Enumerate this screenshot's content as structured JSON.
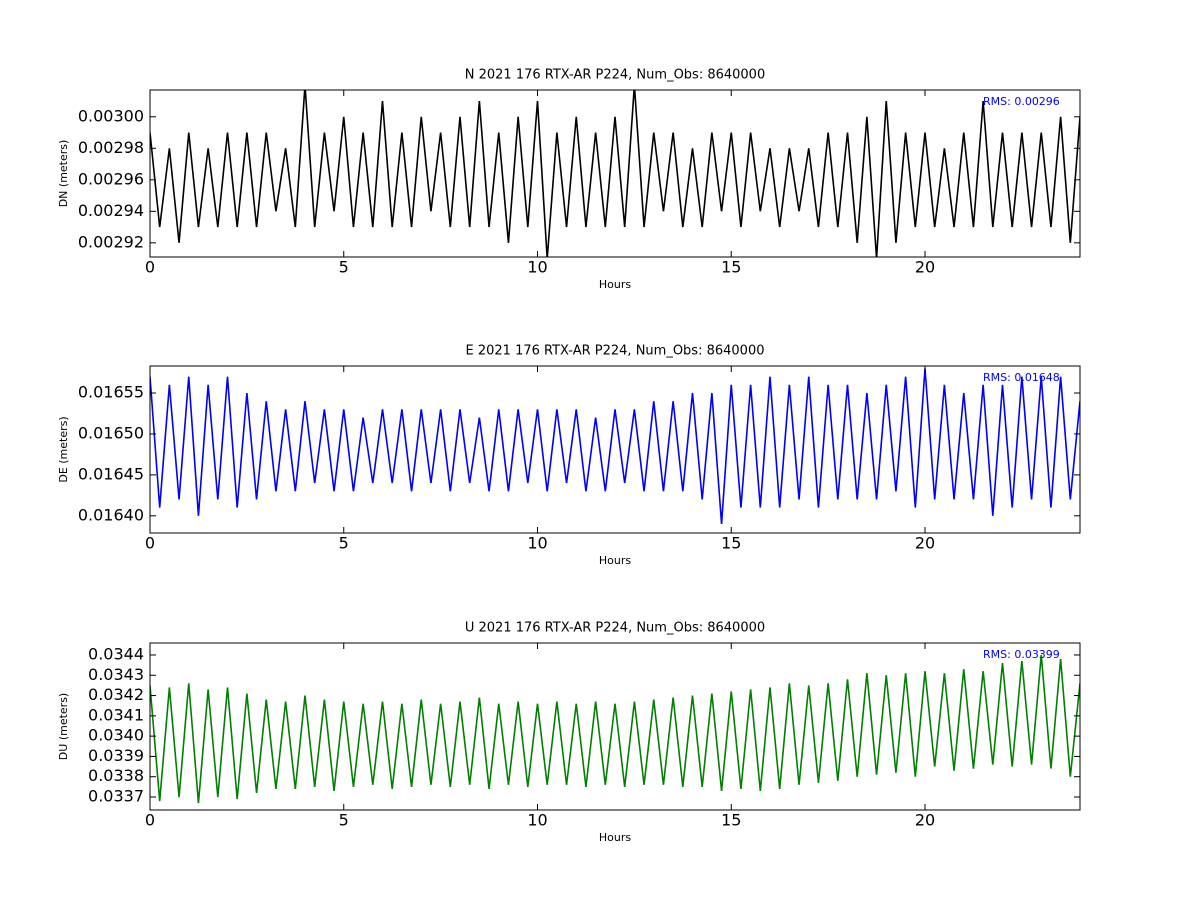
{
  "chart_data": [
    {
      "type": "line",
      "title": "N 2021 176 RTX-AR  P224, Num_Obs: 8640000",
      "xlabel": "Hours",
      "ylabel": "DN (meters)",
      "annotation": "RMS:  0.00296",
      "annotation_color": "#0000ff",
      "color": "#000000",
      "xlim": [
        0,
        24
      ],
      "xticks": [
        0,
        5,
        10,
        15,
        20
      ],
      "ylim": [
        0.002911,
        0.003017
      ],
      "yticks": [
        0.00292,
        0.00294,
        0.00296,
        0.00298,
        {
          "value": 0.003,
          "label": "0.00300"
        }
      ],
      "x": [
        0,
        0.25,
        0.5,
        0.75,
        1,
        1.25,
        1.5,
        1.75,
        2,
        2.25,
        2.5,
        2.75,
        3,
        3.25,
        3.5,
        3.75,
        4,
        4.25,
        4.5,
        4.75,
        5,
        5.25,
        5.5,
        5.75,
        6,
        6.25,
        6.5,
        6.75,
        7,
        7.25,
        7.5,
        7.75,
        8,
        8.25,
        8.5,
        8.75,
        9,
        9.25,
        9.5,
        9.75,
        10,
        10.25,
        10.5,
        10.75,
        11,
        11.25,
        11.5,
        11.75,
        12,
        12.25,
        12.5,
        12.75,
        13,
        13.25,
        13.5,
        13.75,
        14,
        14.25,
        14.5,
        14.75,
        15,
        15.25,
        15.5,
        15.75,
        16,
        16.25,
        16.5,
        16.75,
        17,
        17.25,
        17.5,
        17.75,
        18,
        18.25,
        18.5,
        18.75,
        19,
        19.25,
        19.5,
        19.75,
        20,
        20.25,
        20.5,
        20.75,
        21,
        21.25,
        21.5,
        21.75,
        22,
        22.25,
        22.5,
        22.75,
        23,
        23.25,
        23.5,
        23.75,
        24
      ],
      "values": [
        0.00299,
        0.00293,
        0.00298,
        0.00292,
        0.00299,
        0.00293,
        0.00298,
        0.00293,
        0.00299,
        0.00293,
        0.00299,
        0.00293,
        0.00299,
        0.00294,
        0.00298,
        0.00293,
        0.00302,
        0.00293,
        0.00299,
        0.00294,
        0.003,
        0.00293,
        0.00299,
        0.00293,
        0.00301,
        0.00293,
        0.00299,
        0.00293,
        0.003,
        0.00294,
        0.00299,
        0.00293,
        0.003,
        0.00293,
        0.00301,
        0.00293,
        0.00299,
        0.00292,
        0.003,
        0.00293,
        0.00301,
        0.00291,
        0.00299,
        0.00293,
        0.003,
        0.00293,
        0.00299,
        0.00293,
        0.003,
        0.00293,
        0.00302,
        0.00293,
        0.00299,
        0.00294,
        0.00299,
        0.00293,
        0.00298,
        0.00293,
        0.00299,
        0.00294,
        0.00299,
        0.00293,
        0.00299,
        0.00294,
        0.00298,
        0.00293,
        0.00298,
        0.00294,
        0.00298,
        0.00293,
        0.00299,
        0.00293,
        0.00299,
        0.00292,
        0.003,
        0.00291,
        0.00301,
        0.00292,
        0.00299,
        0.00293,
        0.00299,
        0.00293,
        0.00298,
        0.00293,
        0.00299,
        0.00293,
        0.00301,
        0.00293,
        0.00299,
        0.00293,
        0.00299,
        0.00293,
        0.00299,
        0.00293,
        0.003,
        0.00292,
        0.003
      ]
    },
    {
      "type": "line",
      "title": "E 2021 176 RTX-AR  P224, Num_Obs: 8640000",
      "xlabel": "Hours",
      "ylabel": "DE (meters)",
      "annotation": "RMS:  0.01648",
      "annotation_color": "#0000ff",
      "color": "#0000ff",
      "xlim": [
        0,
        24
      ],
      "xticks": [
        0,
        5,
        10,
        15,
        20
      ],
      "ylim": [
        0.016379,
        0.016583
      ],
      "yticks": [
        {
          "value": 0.0164,
          "label": "0.01640"
        },
        0.01645,
        {
          "value": 0.0165,
          "label": "0.01650"
        },
        0.01655
      ],
      "x": [
        0,
        0.25,
        0.5,
        0.75,
        1,
        1.25,
        1.5,
        1.75,
        2,
        2.25,
        2.5,
        2.75,
        3,
        3.25,
        3.5,
        3.75,
        4,
        4.25,
        4.5,
        4.75,
        5,
        5.25,
        5.5,
        5.75,
        6,
        6.25,
        6.5,
        6.75,
        7,
        7.25,
        7.5,
        7.75,
        8,
        8.25,
        8.5,
        8.75,
        9,
        9.25,
        9.5,
        9.75,
        10,
        10.25,
        10.5,
        10.75,
        11,
        11.25,
        11.5,
        11.75,
        12,
        12.25,
        12.5,
        12.75,
        13,
        13.25,
        13.5,
        13.75,
        14,
        14.25,
        14.5,
        14.75,
        15,
        15.25,
        15.5,
        15.75,
        16,
        16.25,
        16.5,
        16.75,
        17,
        17.25,
        17.5,
        17.75,
        18,
        18.25,
        18.5,
        18.75,
        19,
        19.25,
        19.5,
        19.75,
        20,
        20.25,
        20.5,
        20.75,
        21,
        21.25,
        21.5,
        21.75,
        22,
        22.25,
        22.5,
        22.75,
        23,
        23.25,
        23.5,
        23.75,
        24
      ],
      "values": [
        0.01657,
        0.01641,
        0.01656,
        0.01642,
        0.01657,
        0.0164,
        0.01656,
        0.01642,
        0.01657,
        0.01641,
        0.01655,
        0.01642,
        0.01654,
        0.01643,
        0.01653,
        0.01643,
        0.01654,
        0.01644,
        0.01653,
        0.01643,
        0.01653,
        0.01643,
        0.01652,
        0.01644,
        0.01653,
        0.01644,
        0.01653,
        0.01643,
        0.01653,
        0.01644,
        0.01653,
        0.01643,
        0.01653,
        0.01644,
        0.01652,
        0.01643,
        0.01653,
        0.01643,
        0.01653,
        0.01644,
        0.01653,
        0.01643,
        0.01653,
        0.01644,
        0.01653,
        0.01643,
        0.01652,
        0.01643,
        0.01653,
        0.01644,
        0.01653,
        0.01643,
        0.01654,
        0.01643,
        0.01654,
        0.01643,
        0.01655,
        0.01642,
        0.01655,
        0.01639,
        0.01656,
        0.01641,
        0.01656,
        0.01641,
        0.01657,
        0.01641,
        0.01656,
        0.01642,
        0.01657,
        0.01641,
        0.01656,
        0.01642,
        0.01656,
        0.01642,
        0.01655,
        0.01642,
        0.01656,
        0.01643,
        0.01657,
        0.01641,
        0.01658,
        0.01642,
        0.01656,
        0.01642,
        0.01655,
        0.01642,
        0.01656,
        0.0164,
        0.01656,
        0.01641,
        0.01657,
        0.01642,
        0.01657,
        0.01641,
        0.01657,
        0.01642,
        0.01654
      ]
    },
    {
      "type": "line",
      "title": "U 2021 176 RTX-AR  P224, Num_Obs: 8640000",
      "xlabel": "Hours",
      "ylabel": "DU (meters)",
      "annotation": "RMS:  0.03399",
      "annotation_color": "#0000ff",
      "color": "#008000",
      "xlim": [
        0,
        24
      ],
      "xticks": [
        0,
        5,
        10,
        15,
        20
      ],
      "ylim": [
        0.033636,
        0.034459
      ],
      "yticks": [
        0.0337,
        0.0338,
        0.0339,
        {
          "value": 0.034,
          "label": "0.0340"
        },
        0.0341,
        0.0342,
        0.0343,
        0.0344
      ],
      "x": [
        0,
        0.25,
        0.5,
        0.75,
        1,
        1.25,
        1.5,
        1.75,
        2,
        2.25,
        2.5,
        2.75,
        3,
        3.25,
        3.5,
        3.75,
        4,
        4.25,
        4.5,
        4.75,
        5,
        5.25,
        5.5,
        5.75,
        6,
        6.25,
        6.5,
        6.75,
        7,
        7.25,
        7.5,
        7.75,
        8,
        8.25,
        8.5,
        8.75,
        9,
        9.25,
        9.5,
        9.75,
        10,
        10.25,
        10.5,
        10.75,
        11,
        11.25,
        11.5,
        11.75,
        12,
        12.25,
        12.5,
        12.75,
        13,
        13.25,
        13.5,
        13.75,
        14,
        14.25,
        14.5,
        14.75,
        15,
        15.25,
        15.5,
        15.75,
        16,
        16.25,
        16.5,
        16.75,
        17,
        17.25,
        17.5,
        17.75,
        18,
        18.25,
        18.5,
        18.75,
        19,
        19.25,
        19.5,
        19.75,
        20,
        20.25,
        20.5,
        20.75,
        21,
        21.25,
        21.5,
        21.75,
        22,
        22.25,
        22.5,
        22.75,
        23,
        23.25,
        23.5,
        23.75,
        24
      ],
      "values": [
        0.03425,
        0.03368,
        0.03424,
        0.0337,
        0.03426,
        0.03367,
        0.03423,
        0.0337,
        0.03424,
        0.03369,
        0.03421,
        0.03372,
        0.03418,
        0.03374,
        0.03417,
        0.03374,
        0.0342,
        0.03375,
        0.03418,
        0.03373,
        0.03417,
        0.03375,
        0.03416,
        0.03376,
        0.03417,
        0.03374,
        0.03416,
        0.03375,
        0.03418,
        0.03376,
        0.03416,
        0.03375,
        0.03417,
        0.03376,
        0.03419,
        0.03374,
        0.03416,
        0.03376,
        0.03417,
        0.03375,
        0.03416,
        0.03376,
        0.03417,
        0.03376,
        0.03416,
        0.03375,
        0.03417,
        0.03376,
        0.03416,
        0.03375,
        0.03417,
        0.03376,
        0.03418,
        0.03376,
        0.03419,
        0.03375,
        0.0342,
        0.03375,
        0.03421,
        0.03373,
        0.03422,
        0.03374,
        0.03423,
        0.03373,
        0.03424,
        0.03374,
        0.03426,
        0.03376,
        0.03425,
        0.03377,
        0.03426,
        0.03378,
        0.03428,
        0.0338,
        0.03431,
        0.03381,
        0.0343,
        0.03382,
        0.03431,
        0.0338,
        0.03432,
        0.03385,
        0.03431,
        0.03383,
        0.03433,
        0.03384,
        0.03432,
        0.03386,
        0.03436,
        0.03385,
        0.03437,
        0.03386,
        0.0344,
        0.03384,
        0.03438,
        0.0338,
        0.03426
      ]
    }
  ]
}
